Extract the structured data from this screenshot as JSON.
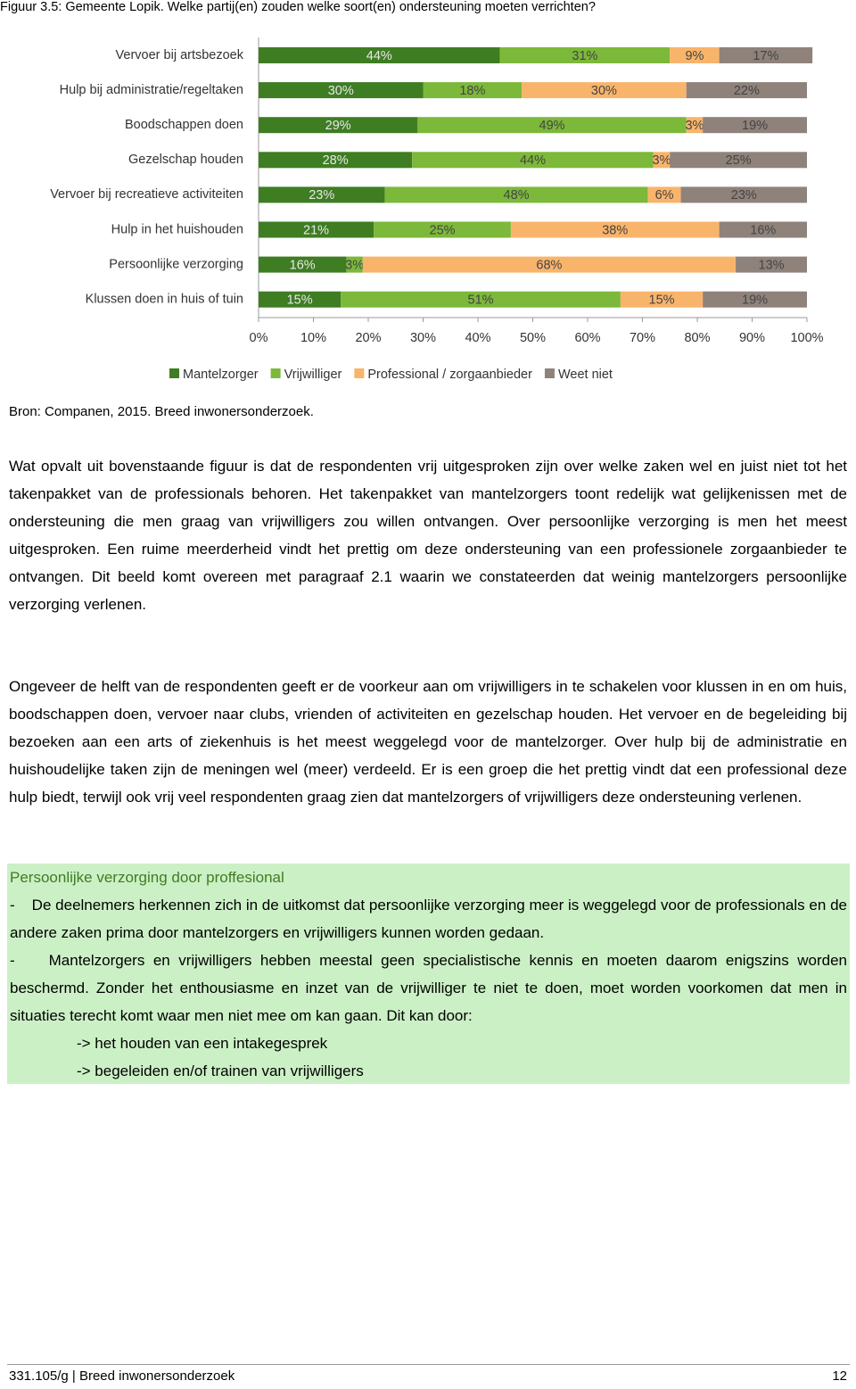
{
  "caption": "Figuur 3.5: Gemeente Lopik. Welke partij(en) zouden welke soort(en) ondersteuning moeten verrichten?",
  "chart_data": {
    "type": "stacked-bar-horizontal",
    "categories": [
      "Vervoer bij artsbezoek",
      "Hulp bij administratie/regeltaken",
      "Boodschappen doen",
      "Gezelschap houden",
      "Vervoer bij recreatieve activiteiten",
      "Hulp in het huishouden",
      "Persoonlijke verzorging",
      "Klussen doen in huis of tuin"
    ],
    "series": [
      {
        "name": "Mantelzorger",
        "color": "#3e7d22",
        "values": [
          44,
          30,
          29,
          28,
          23,
          21,
          16,
          15
        ],
        "value_labels": [
          "44%",
          "30%",
          "29%",
          "28%",
          "23%",
          "21%",
          "16%",
          "15%"
        ]
      },
      {
        "name": "Vrijwilliger",
        "color": "#7cb83a",
        "values": [
          31,
          18,
          49,
          44,
          48,
          25,
          3,
          51
        ],
        "value_labels": [
          "31%",
          "18%",
          "49%",
          "44%",
          "48%",
          "25%",
          "3%",
          "51%"
        ]
      },
      {
        "name": "Professional / zorgaanbieder",
        "color": "#f9b46b",
        "values": [
          9,
          30,
          3,
          3,
          6,
          38,
          68,
          15
        ],
        "value_labels": [
          "9%",
          "30%",
          "3%",
          "3%",
          "6%",
          "38%",
          "68%",
          "15%"
        ]
      },
      {
        "name": "Weet niet",
        "color": "#8e827b",
        "values": [
          17,
          22,
          19,
          25,
          23,
          16,
          13,
          19
        ],
        "value_labels": [
          "17%",
          "22%",
          "19%",
          "25%",
          "23%",
          "16%",
          "13%",
          "19%"
        ]
      }
    ],
    "xlim": [
      0,
      100
    ],
    "xticks": [
      {
        "value": 0,
        "label": "0%"
      },
      {
        "value": 10,
        "label": "10%"
      },
      {
        "value": 20,
        "label": "20%"
      },
      {
        "value": 30,
        "label": "30%"
      },
      {
        "value": 40,
        "label": "40%"
      },
      {
        "value": 50,
        "label": "50%"
      },
      {
        "value": 60,
        "label": "60%"
      },
      {
        "value": 70,
        "label": "70%"
      },
      {
        "value": 80,
        "label": "80%"
      },
      {
        "value": 90,
        "label": "90%"
      },
      {
        "value": 100,
        "label": "100%"
      }
    ],
    "legend": "bottom"
  },
  "source": "Bron: Companen, 2015. Breed inwonersonderzoek.",
  "paragraphs": [
    "Wat opvalt uit bovenstaande figuur is dat de respondenten vrij uitgesproken zijn over welke zaken wel en juist niet tot het takenpakket van de professionals behoren. Het takenpakket van mantelzorgers toont redelijk wat gelijkenissen met de ondersteuning die men graag van vrijwilligers zou willen ontvangen. Over persoonlijke verzorging is men het meest uitgesproken. Een ruime meerderheid vindt het prettig om deze ondersteuning van een professionele zorgaanbieder te ontvangen. Dit beeld komt overeen met paragraaf 2.1 waarin we constateerden dat weinig mantelzorgers persoonlijke verzorging verlenen.",
    "Ongeveer de helft van de respondenten geeft er de voorkeur aan om vrijwilligers in te schakelen voor klussen in en om huis, boodschappen doen, vervoer naar clubs, vrienden of activiteiten en gezelschap houden. Het vervoer en de begeleiding bij bezoeken aan een arts of ziekenhuis is het meest weggelegd voor de mantelzorger. Over hulp bij de administratie en huishoudelijke taken zijn de meningen wel (meer) verdeeld. Er is een groep die het prettig vindt dat een professional deze hulp biedt, terwijl ook vrij veel respondenten graag zien dat mantelzorgers of vrijwilligers deze ondersteuning verlenen."
  ],
  "box": {
    "heading": "Persoonlijke verzorging door proffesional",
    "items": [
      "-    De deelnemers herkennen zich in de uitkomst dat persoonlijke verzorging meer is weggelegd voor de professionals en de andere zaken prima door mantelzorgers en vrijwilligers kunnen worden gedaan.",
      "-    Mantelzorgers en vrijwilligers hebben meestal geen specialistische kennis en moeten daarom enigszins worden beschermd. Zonder het enthousiasme en inzet van de vrijwilliger te niet te doen, moet worden voorkomen dat men in situaties terecht komt waar men niet mee om kan gaan. Dit kan door:"
    ],
    "arrows": [
      "-> het houden van een intakegesprek",
      "-> begeleiden en/of trainen van vrijwilligers"
    ]
  },
  "footer": {
    "left": "331.105/g | Breed inwonersonderzoek",
    "page": "12"
  }
}
